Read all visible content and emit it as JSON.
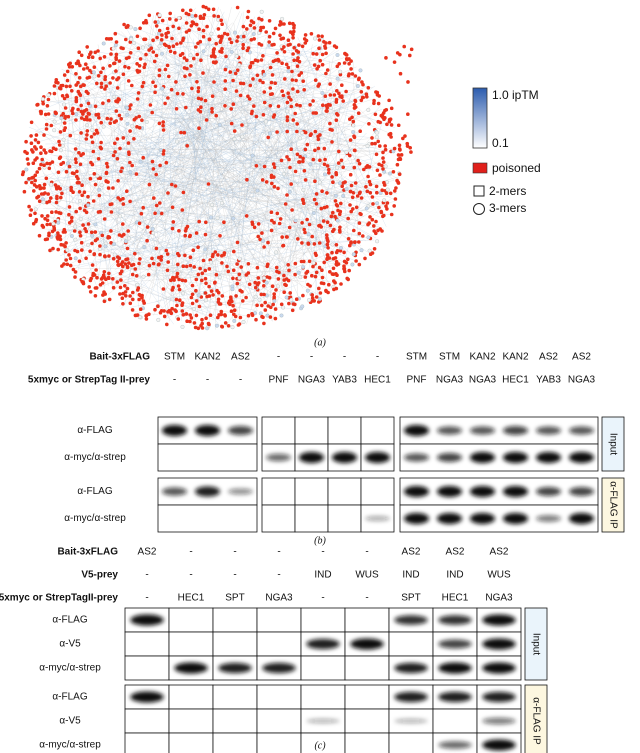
{
  "panel_a": {
    "legend": {
      "iptm_max": "1.0 ipTM",
      "iptm_min": "0.1",
      "poisoned": "poisoned",
      "dimers": "2-mers",
      "trimers": "3-mers"
    },
    "caption": "(a)"
  },
  "panel_b": {
    "header": [
      {
        "label": "Bait-3xFLAG",
        "cells": [
          "STM",
          "KAN2",
          "AS2",
          "-",
          "-",
          "-",
          "-",
          "STM",
          "STM",
          "KAN2",
          "KAN2",
          "AS2",
          "AS2"
        ]
      },
      {
        "label": "5xmyc or StrepTag II-prey",
        "cells": [
          "-",
          "-",
          "-",
          "PNF",
          "NGA3",
          "YAB3",
          "HEC1",
          "PNF",
          "NGA3",
          "NGA3",
          "HEC1",
          "YAB3",
          "NGA3"
        ]
      }
    ],
    "blots": [
      {
        "label": "Input",
        "rows": [
          "α-FLAG",
          "α-myc/α-strep"
        ]
      },
      {
        "label": "α-FLAG IP",
        "rows": [
          "α-FLAG",
          "α-myc/α-strep"
        ]
      }
    ],
    "caption": "(b)"
  },
  "panel_c": {
    "header": [
      {
        "label": "Bait-3xFLAG",
        "cells": [
          "AS2",
          "-",
          "-",
          "-",
          "-",
          "-",
          "AS2",
          "AS2",
          "AS2"
        ]
      },
      {
        "label": "V5-prey",
        "cells": [
          "-",
          "-",
          "-",
          "-",
          "IND",
          "WUS",
          "IND",
          "IND",
          "WUS"
        ]
      },
      {
        "label": "5xmyc or StrepTagII-prey",
        "cells": [
          "-",
          "HEC1",
          "SPT",
          "NGA3",
          "-",
          "-",
          "SPT",
          "HEC1",
          "NGA3"
        ]
      }
    ],
    "blots": [
      {
        "label": "Input",
        "rows": [
          "α-FLAG",
          "α-V5",
          "α-myc/α-strep"
        ]
      },
      {
        "label": "α-FLAG IP",
        "rows": [
          "α-FLAG",
          "α-V5",
          "α-myc/α-strep"
        ]
      }
    ],
    "caption": "(c)"
  }
}
